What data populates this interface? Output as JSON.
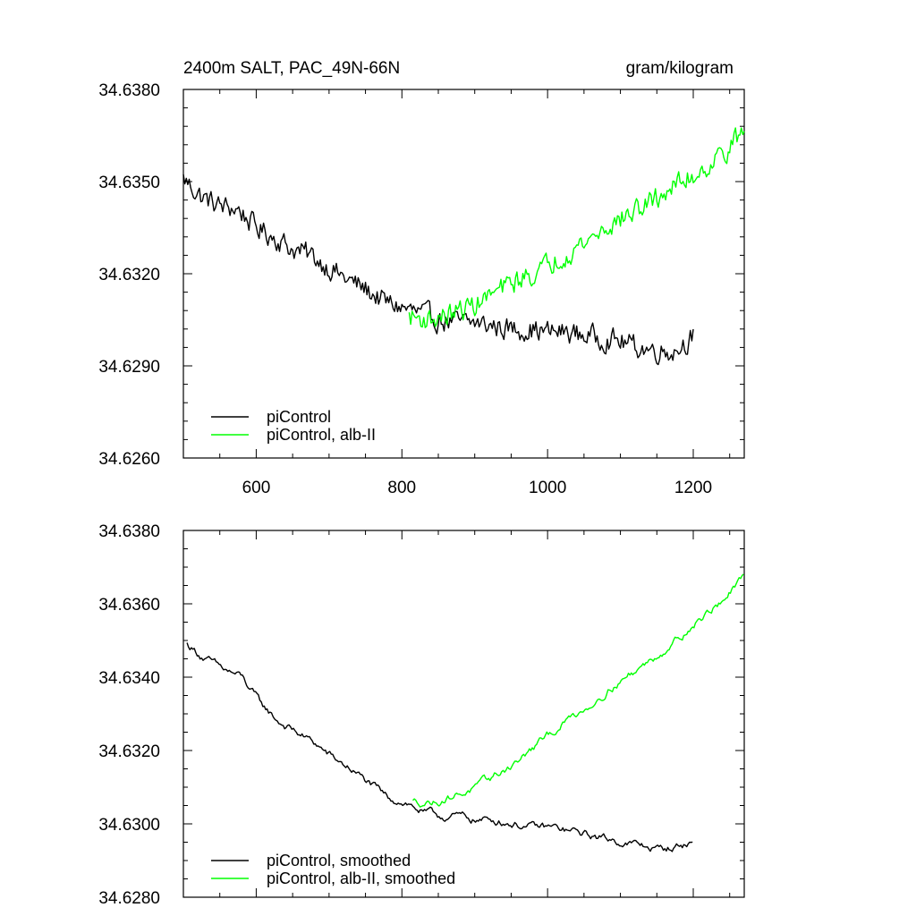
{
  "chart_data": [
    {
      "type": "line",
      "title": "2400m SALT, PAC_49N-66N",
      "units": "gram/kilogram",
      "xlim": [
        500,
        1270
      ],
      "ylim": [
        34.626,
        34.638
      ],
      "x_ticks": [
        600,
        800,
        1000,
        1200
      ],
      "x_tick_labels": [
        "600",
        "800",
        "1000",
        "1200"
      ],
      "y_ticks": [
        34.626,
        34.629,
        34.632,
        34.635,
        34.638
      ],
      "y_tick_labels": [
        "34.6260",
        "34.6290",
        "34.6320",
        "34.6350",
        "34.6380"
      ],
      "legend_position": "bottom-left",
      "series": [
        {
          "name": "piControl",
          "color": "#000000",
          "x": [
            500,
            525,
            550,
            575,
            600,
            625,
            650,
            675,
            700,
            725,
            750,
            775,
            800,
            825,
            850,
            875,
            900,
            925,
            950,
            975,
            1000,
            1025,
            1050,
            1075,
            1100,
            1125,
            1150,
            1175,
            1200
          ],
          "y": [
            34.6351,
            34.6345,
            34.6342,
            34.6341,
            34.6335,
            34.6332,
            34.6328,
            34.6326,
            34.6322,
            34.6318,
            34.6315,
            34.6311,
            34.6309,
            34.6307,
            34.6305,
            34.6304,
            34.6304,
            34.6303,
            34.6302,
            34.6302,
            34.6301,
            34.6301,
            34.63,
            34.6299,
            34.6298,
            34.6296,
            34.6295,
            34.6295,
            34.63
          ]
        },
        {
          "name": "piControl, alb-II",
          "color": "#00ff00",
          "x": [
            810,
            840,
            870,
            900,
            930,
            960,
            990,
            1020,
            1050,
            1080,
            1110,
            1140,
            1170,
            1200,
            1230,
            1270
          ],
          "y": [
            34.6306,
            34.6305,
            34.6307,
            34.631,
            34.6314,
            34.6318,
            34.6321,
            34.6326,
            34.633,
            34.6335,
            34.6339,
            34.6343,
            34.6348,
            34.6352,
            34.6357,
            34.6366
          ]
        }
      ]
    },
    {
      "type": "line",
      "xlim": [
        500,
        1270
      ],
      "ylim": [
        34.628,
        34.638
      ],
      "x_ticks": [
        600,
        800,
        1000,
        1200
      ],
      "y_ticks": [
        34.628,
        34.63,
        34.632,
        34.634,
        34.636,
        34.638
      ],
      "y_tick_labels": [
        "34.6280",
        "34.6300",
        "34.6320",
        "34.6340",
        "34.6360",
        "34.6380"
      ],
      "legend_position": "bottom-left",
      "series": [
        {
          "name": "piControl, smoothed",
          "color": "#000000",
          "x": [
            505,
            530,
            555,
            580,
            605,
            630,
            655,
            680,
            705,
            730,
            755,
            780,
            805,
            830,
            855,
            880,
            905,
            930,
            955,
            980,
            1005,
            1030,
            1055,
            1080,
            1105,
            1130,
            1155,
            1180,
            1200
          ],
          "y": [
            34.6349,
            34.6345,
            34.6342,
            34.634,
            34.6333,
            34.6328,
            34.6325,
            34.6322,
            34.6318,
            34.6315,
            34.6311,
            34.6307,
            34.6306,
            34.6303,
            34.6302,
            34.6302,
            34.6301,
            34.6301,
            34.63,
            34.6299,
            34.6299,
            34.6298,
            34.6297,
            34.6296,
            34.6295,
            34.6294,
            34.6293,
            34.6294,
            34.6295
          ]
        },
        {
          "name": "piControl, alb-II, smoothed",
          "color": "#00ff00",
          "x": [
            815,
            845,
            875,
            905,
            935,
            965,
            995,
            1025,
            1055,
            1085,
            1115,
            1145,
            1175,
            1205,
            1235,
            1270
          ],
          "y": [
            34.6306,
            34.6306,
            34.6308,
            34.631,
            34.6314,
            34.6318,
            34.6323,
            34.6328,
            34.6332,
            34.6337,
            34.6341,
            34.6345,
            34.635,
            34.6355,
            34.636,
            34.6367
          ]
        }
      ]
    }
  ]
}
